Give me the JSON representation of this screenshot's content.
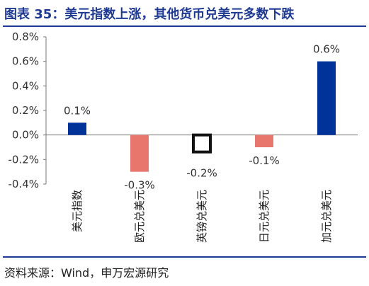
{
  "figure": {
    "title": "图表 35：美元指数上涨，其他货币兑美元多数下跌",
    "source": "资料来源：Wind，申万宏源研究"
  },
  "chart_data": {
    "type": "bar",
    "categories": [
      "美元指数",
      "欧元兑美元",
      "英镑兑美元",
      "日元兑美元",
      "加元兑美元"
    ],
    "values": [
      0.1,
      -0.3,
      -0.2,
      -0.1,
      0.6
    ],
    "data_labels": [
      "0.1%",
      "-0.3%",
      "-0.2%",
      "-0.1%",
      "0.6%"
    ],
    "colors": [
      "#003399",
      "#e8766d",
      "#e8766d",
      "#e8766d",
      "#003399"
    ],
    "highlight_box_category": "英镑兑美元",
    "ylim": [
      -0.4,
      0.8
    ],
    "yticks": [
      "-0.4%",
      "-0.2%",
      "0.0%",
      "0.2%",
      "0.4%",
      "0.6%",
      "0.8%"
    ],
    "ytick_values": [
      -0.4,
      -0.2,
      0.0,
      0.2,
      0.4,
      0.6,
      0.8
    ],
    "grid": false,
    "legend": "none"
  }
}
